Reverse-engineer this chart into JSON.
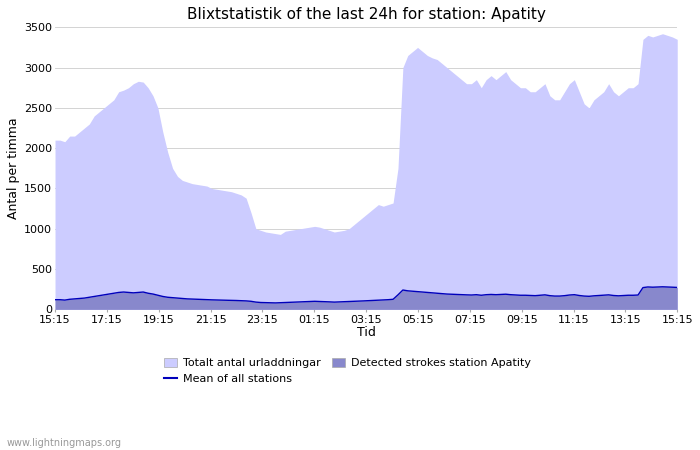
{
  "title": "Blixtstatistik of the last 24h for station: Apatity",
  "xlabel": "Tid",
  "ylabel": "Antal per timma",
  "ylim": [
    0,
    3500
  ],
  "yticks": [
    0,
    500,
    1000,
    1500,
    2000,
    2500,
    3000,
    3500
  ],
  "xtick_labels": [
    "15:15",
    "17:15",
    "19:15",
    "21:15",
    "23:15",
    "01:15",
    "03:15",
    "05:15",
    "07:15",
    "09:15",
    "11:15",
    "13:15",
    "15:15"
  ],
  "watermark": "www.lightningmaps.org",
  "background_color": "#ffffff",
  "grid_color": "#cccccc",
  "title_fontsize": 11,
  "axis_fontsize": 9,
  "tick_fontsize": 8,
  "total_color": "#ccccff",
  "detected_color": "#8888cc",
  "mean_color": "#0000bb",
  "total_y": [
    2100,
    2100,
    2080,
    2150,
    2150,
    2200,
    2250,
    2300,
    2400,
    2450,
    2500,
    2550,
    2600,
    2700,
    2720,
    2750,
    2800,
    2830,
    2820,
    2750,
    2650,
    2500,
    2200,
    1950,
    1750,
    1650,
    1600,
    1580,
    1560,
    1550,
    1540,
    1530,
    1500,
    1490,
    1480,
    1470,
    1460,
    1440,
    1420,
    1380,
    1200,
    1000,
    980,
    960,
    950,
    940,
    930,
    970,
    980,
    990,
    1000,
    1010,
    1020,
    1030,
    1020,
    1000,
    980,
    960,
    970,
    980,
    1000,
    1050,
    1100,
    1150,
    1200,
    1250,
    1300,
    1280,
    1300,
    1320,
    1750,
    3000,
    3150,
    3200,
    3250,
    3200,
    3150,
    3120,
    3100,
    3050,
    3000,
    2950,
    2900,
    2850,
    2800,
    2800,
    2850,
    2750,
    2850,
    2900,
    2850,
    2900,
    2950,
    2850,
    2800,
    2750,
    2750,
    2700,
    2700,
    2750,
    2800,
    2650,
    2600,
    2600,
    2700,
    2800,
    2850,
    2700,
    2550,
    2500,
    2600,
    2650,
    2700,
    2800,
    2700,
    2650,
    2700,
    2750,
    2750,
    2800,
    3350,
    3400,
    3380,
    3400,
    3420,
    3400,
    3380,
    3350
  ],
  "detected_y": [
    120,
    120,
    115,
    125,
    130,
    135,
    140,
    150,
    160,
    170,
    180,
    190,
    200,
    210,
    215,
    210,
    205,
    210,
    215,
    200,
    190,
    175,
    160,
    150,
    145,
    140,
    135,
    130,
    128,
    125,
    123,
    120,
    118,
    116,
    115,
    113,
    112,
    110,
    108,
    105,
    100,
    90,
    85,
    83,
    82,
    80,
    82,
    85,
    88,
    90,
    92,
    95,
    98,
    100,
    98,
    95,
    93,
    90,
    92,
    95,
    98,
    100,
    102,
    105,
    108,
    112,
    115,
    118,
    120,
    125,
    180,
    240,
    230,
    225,
    220,
    215,
    210,
    205,
    200,
    195,
    190,
    188,
    185,
    182,
    180,
    178,
    182,
    175,
    182,
    185,
    182,
    185,
    188,
    182,
    178,
    175,
    175,
    172,
    170,
    175,
    180,
    170,
    165,
    165,
    170,
    178,
    182,
    172,
    165,
    162,
    168,
    172,
    175,
    180,
    172,
    168,
    172,
    175,
    175,
    178,
    270,
    278,
    275,
    278,
    280,
    278,
    275,
    272
  ],
  "mean_y": [
    120,
    120,
    115,
    125,
    130,
    135,
    140,
    150,
    160,
    170,
    180,
    190,
    200,
    210,
    215,
    210,
    205,
    210,
    215,
    200,
    190,
    175,
    160,
    150,
    145,
    140,
    135,
    130,
    128,
    125,
    123,
    120,
    118,
    116,
    115,
    113,
    112,
    110,
    108,
    105,
    100,
    90,
    85,
    83,
    82,
    80,
    82,
    85,
    88,
    90,
    92,
    95,
    98,
    100,
    98,
    95,
    93,
    90,
    92,
    95,
    98,
    100,
    102,
    105,
    108,
    112,
    115,
    118,
    120,
    125,
    180,
    240,
    230,
    225,
    220,
    215,
    210,
    205,
    200,
    195,
    190,
    188,
    185,
    182,
    180,
    178,
    182,
    175,
    182,
    185,
    182,
    185,
    188,
    182,
    178,
    175,
    175,
    172,
    170,
    175,
    180,
    170,
    165,
    165,
    170,
    178,
    182,
    172,
    165,
    162,
    168,
    172,
    175,
    180,
    172,
    168,
    172,
    175,
    175,
    178,
    270,
    278,
    275,
    278,
    280,
    278,
    275,
    272
  ]
}
